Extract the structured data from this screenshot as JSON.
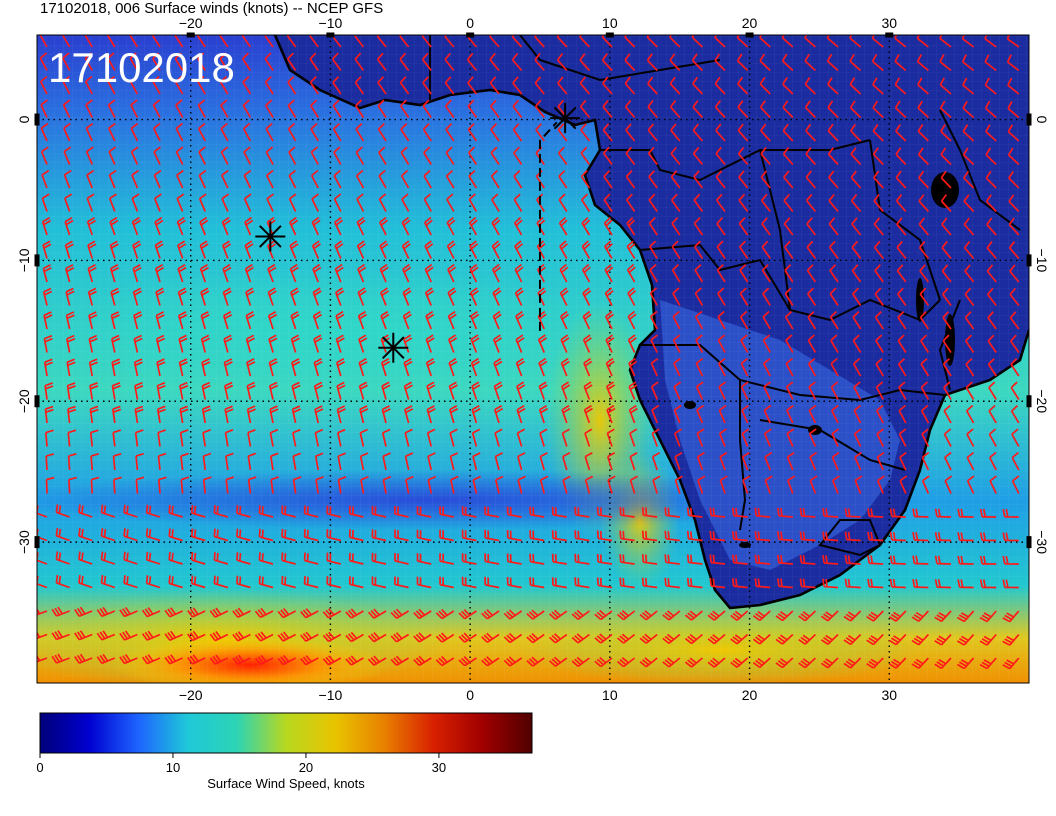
{
  "title": "17102018, 006 Surface winds (knots) -- NCEP GFS",
  "date_label": "17102018",
  "map": {
    "lon_range": [
      -31,
      40
    ],
    "lat_range": [
      -40,
      6
    ],
    "lon_ticks": [
      -20,
      -10,
      0,
      10,
      20,
      30
    ],
    "lat_ticks": [
      0,
      -10,
      -20,
      -30
    ],
    "lon_tick_labels": [
      "−20",
      "−10",
      "0",
      "10",
      "20",
      "30"
    ],
    "lat_tick_labels": [
      "0",
      "−10",
      "−20",
      "−30"
    ],
    "background_colors": {
      "ocean_low": "#1d2fc0",
      "mid": "#1fc4c8",
      "high": "#e8b800",
      "max": "#c80000"
    },
    "barb_color": "#ff1a1a",
    "markers": [
      {
        "name": "star-marker-1",
        "lon": 6.8,
        "lat": 0.1
      },
      {
        "name": "star-marker-2",
        "lon": -14.3,
        "lat": -8.3
      },
      {
        "name": "star-marker-3",
        "lon": -5.5,
        "lat": -16.2
      }
    ],
    "dashed_track": [
      [
        5,
        -15
      ],
      [
        5,
        -1.5
      ],
      [
        6.2,
        -0.2
      ]
    ]
  },
  "colorbar": {
    "label": "Surface Wind Speed, knots",
    "ticks": [
      0,
      10,
      20,
      30
    ],
    "range": [
      0,
      37
    ],
    "colors": [
      "#00007a",
      "#0000d0",
      "#1e64ff",
      "#1fc8d8",
      "#2cd4b4",
      "#b8d820",
      "#e8c400",
      "#e88000",
      "#d82000",
      "#a00000",
      "#500000"
    ]
  }
}
